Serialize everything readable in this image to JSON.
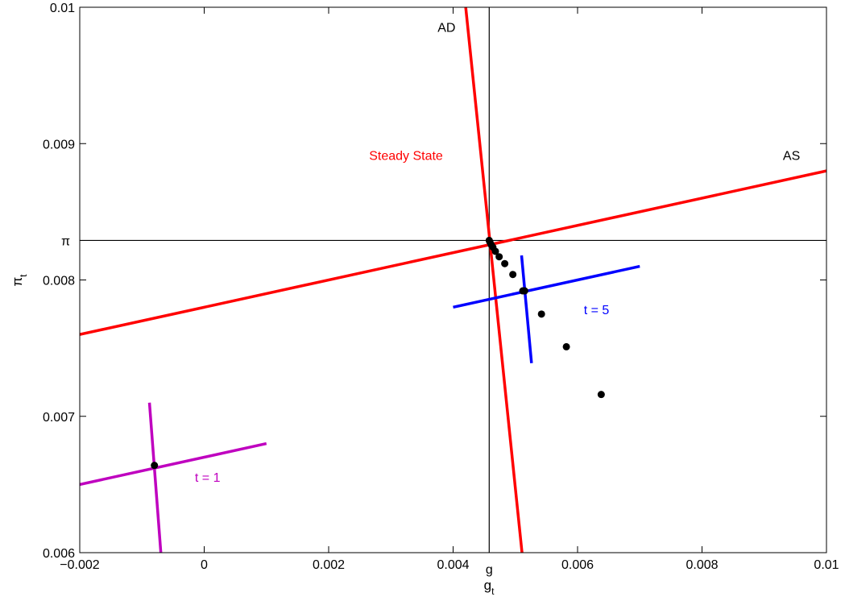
{
  "chart_data": {
    "type": "line",
    "xlabel": "g",
    "xlabel_sub": "t",
    "ylabel": "π",
    "ylabel_sub": "t",
    "xlim": [
      -0.002,
      0.01
    ],
    "ylim": [
      0.006,
      0.01
    ],
    "grid": false,
    "x_ticks": [
      {
        "value": -0.002,
        "label": "−0.002"
      },
      {
        "value": 0,
        "label": "0"
      },
      {
        "value": 0.002,
        "label": "0.002"
      },
      {
        "value": 0.004,
        "label": "0.004"
      },
      {
        "value": 0.006,
        "label": "0.006"
      },
      {
        "value": 0.008,
        "label": "0.008"
      },
      {
        "value": 0.01,
        "label": "0.01"
      }
    ],
    "y_ticks": [
      {
        "value": 0.006,
        "label": "0.006"
      },
      {
        "value": 0.007,
        "label": "0.007"
      },
      {
        "value": 0.008,
        "label": "0.008"
      },
      {
        "value": 0.009,
        "label": "0.009"
      },
      {
        "value": 0.01,
        "label": "0.01"
      }
    ],
    "steady_state": {
      "g": 0.00458,
      "pi": 0.00829,
      "g_label": "g",
      "pi_label": "π"
    },
    "series": [
      {
        "id": "ad",
        "color": "#ff0000",
        "x": [
          0.00418,
          0.00513
        ],
        "y": [
          0.0101,
          0.0059
        ]
      },
      {
        "id": "as",
        "color": "#ff0000",
        "x": [
          -0.002,
          0.01
        ],
        "y": [
          0.0076,
          0.0088
        ]
      },
      {
        "id": "as-t5",
        "color": "#0000ff",
        "x": [
          0.004,
          0.007
        ],
        "y": [
          0.0078,
          0.0081
        ]
      },
      {
        "id": "ad-t5",
        "color": "#0000ff",
        "x": [
          0.0051,
          0.00526
        ],
        "y": [
          0.00818,
          0.00739
        ]
      },
      {
        "id": "as-t1",
        "color": "#bf00bf",
        "x": [
          -0.002,
          0.001
        ],
        "y": [
          0.0065,
          0.0068
        ]
      },
      {
        "id": "ad-t1",
        "color": "#bf00bf",
        "x": [
          -0.00088,
          -0.00068
        ],
        "y": [
          0.0071,
          0.0059
        ]
      }
    ],
    "points": {
      "name": "path",
      "x": [
        0.00638,
        0.00582,
        0.00542,
        0.00515,
        0.00496,
        0.00483,
        0.00474,
        0.00468,
        0.00464,
        0.00461,
        0.00459
      ],
      "y": [
        0.00716,
        0.00751,
        0.00775,
        0.00792,
        0.00804,
        0.00812,
        0.00817,
        0.00821,
        0.00824,
        0.00826,
        0.00828
      ]
    },
    "annotations": [
      {
        "id": "ad",
        "text": "AD",
        "color": "#000000",
        "x": 0.00375,
        "y": 0.00982
      },
      {
        "id": "as",
        "text": "AS",
        "color": "#000000",
        "x": 0.0093,
        "y": 0.00888
      },
      {
        "id": "steady-state",
        "text": "Steady State",
        "color": "#ff0000",
        "x": 0.00265,
        "y": 0.00888
      },
      {
        "id": "t5",
        "text": "t = 5",
        "color": "#0000ff",
        "x": 0.0061,
        "y": 0.00775
      },
      {
        "id": "t1",
        "text": "t = 1",
        "color": "#bf00bf",
        "x": -0.00015,
        "y": 0.00652
      }
    ]
  }
}
